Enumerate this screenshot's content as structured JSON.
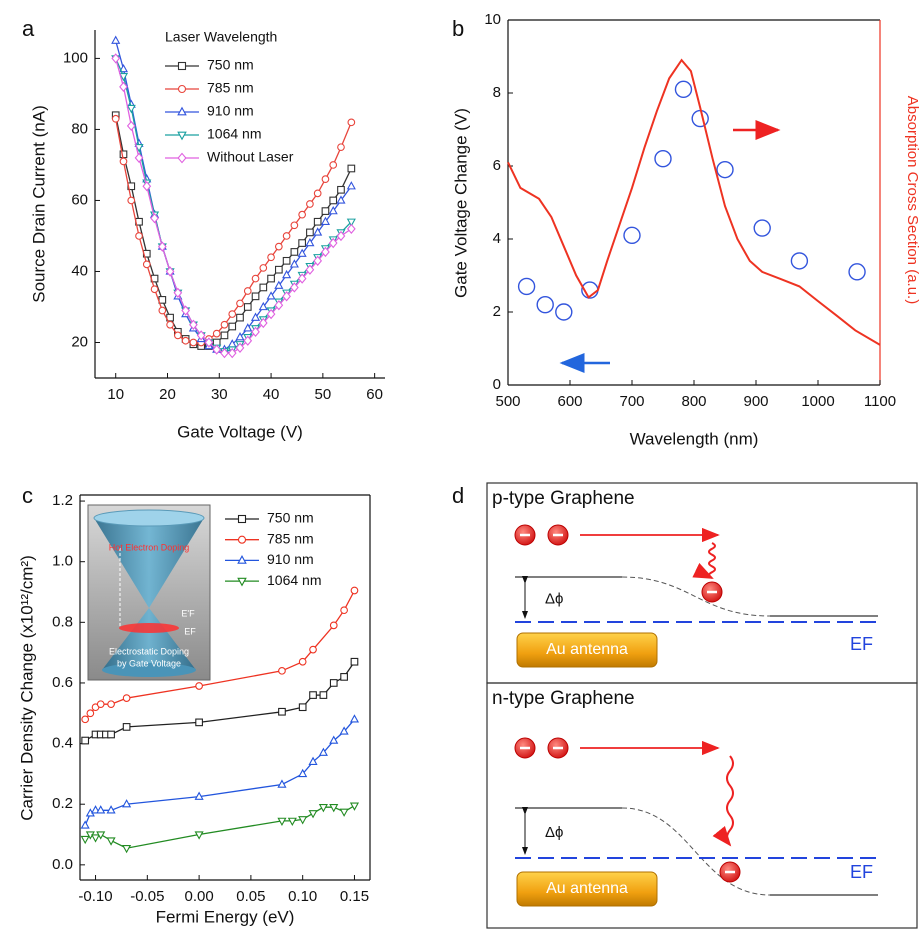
{
  "chart_data": [
    {
      "type": "line",
      "panel_label": "a",
      "x_label": "Gate Voltage (V)",
      "y_label": "Source Drain Current (nA)",
      "legend_title": "Laser Wavelength",
      "xlim": [
        6,
        62
      ],
      "ylim": [
        10,
        108
      ],
      "xticks": [
        10,
        20,
        30,
        40,
        50,
        60
      ],
      "yticks": [
        20,
        40,
        60,
        80,
        100
      ],
      "x": [
        10,
        11.5,
        13,
        14.5,
        16,
        17.5,
        19,
        20.5,
        22,
        23.5,
        25,
        26.5,
        28,
        29.5,
        31,
        32.5,
        34,
        35.5,
        37,
        38.5,
        40,
        41.5,
        43,
        44.5,
        46,
        47.5,
        49,
        50.5,
        52,
        53.5,
        55.5
      ],
      "series": [
        {
          "name": "750 nm",
          "color": "#333333",
          "marker": "square",
          "values": [
            84,
            73,
            64,
            54,
            45,
            38,
            32,
            27,
            23,
            21,
            19.5,
            19,
            19,
            20,
            22,
            24.5,
            27,
            30,
            33,
            35.5,
            38,
            40.5,
            43,
            45.5,
            48,
            51,
            54,
            57,
            60,
            63,
            69
          ]
        },
        {
          "name": "785 nm",
          "color": "#e8453c",
          "marker": "circle",
          "values": [
            83,
            71,
            60,
            50,
            42,
            35,
            29,
            25,
            22,
            20.5,
            20,
            20,
            21,
            22.5,
            25,
            28,
            31,
            34.5,
            38,
            41,
            44,
            47,
            50,
            53,
            56,
            59,
            62,
            66,
            70,
            75,
            82
          ]
        },
        {
          "name": "910 nm",
          "color": "#3355dd",
          "marker": "triangle-up",
          "values": [
            105,
            97,
            87,
            76,
            66,
            56,
            47,
            40,
            33,
            28,
            24,
            21,
            19,
            18,
            18,
            19.5,
            21.5,
            24,
            27,
            30,
            33,
            36,
            39,
            42,
            45,
            48,
            51,
            54,
            57,
            60,
            64
          ]
        },
        {
          "name": "1064 nm",
          "color": "#1aa0a0",
          "marker": "triangle-down",
          "values": [
            100,
            95,
            86,
            75,
            65,
            56,
            47,
            40,
            34,
            29,
            25,
            22,
            20,
            18.5,
            17.5,
            18,
            19.5,
            21.5,
            24,
            26.5,
            29,
            31.5,
            34,
            36.5,
            39,
            41.5,
            44,
            46.5,
            49,
            51,
            54
          ]
        },
        {
          "name": "Without Laser",
          "color": "#e060e0",
          "marker": "diamond",
          "values": [
            100,
            92,
            81,
            72,
            64,
            55,
            47,
            40,
            34,
            29,
            25,
            22,
            20,
            18,
            17,
            17,
            18.5,
            20.5,
            23,
            25.5,
            28,
            30.5,
            33,
            35.5,
            38,
            40.5,
            43,
            45.5,
            48,
            50,
            52
          ]
        }
      ]
    },
    {
      "type": "scatter",
      "panel_label": "b",
      "x_label": "Wavelength (nm)",
      "y_label": "Gate Voltage Change (V)",
      "y2_label": "Absorption Cross Section (a.u.)",
      "xlim": [
        500,
        1100
      ],
      "ylim": [
        0,
        10
      ],
      "y2lim": [
        0,
        10
      ],
      "xticks": [
        500,
        600,
        700,
        800,
        900,
        1000,
        1100
      ],
      "yticks": [
        0,
        2,
        4,
        6,
        8,
        10
      ],
      "series": [
        {
          "color": "#3355dd",
          "x": [
            530,
            560,
            590,
            632,
            700,
            750,
            783,
            810,
            850,
            910,
            970,
            1063
          ],
          "values": [
            2.7,
            2.2,
            2.0,
            2.6,
            4.1,
            6.2,
            8.1,
            7.3,
            5.9,
            4.3,
            3.4,
            3.1
          ]
        },
        {
          "type": "line",
          "axis": "y2",
          "color": "#ee3322",
          "x": [
            500,
            520,
            550,
            570,
            590,
            610,
            630,
            645,
            660,
            680,
            700,
            720,
            740,
            760,
            780,
            795,
            810,
            830,
            850,
            870,
            890,
            910,
            940,
            970,
            1000,
            1030,
            1060,
            1100
          ],
          "values": [
            6.1,
            5.4,
            5.1,
            4.6,
            3.8,
            3.0,
            2.4,
            2.6,
            3.4,
            4.4,
            5.4,
            6.5,
            7.5,
            8.4,
            8.9,
            8.6,
            7.6,
            6.2,
            4.9,
            4.0,
            3.4,
            3.1,
            2.9,
            2.7,
            2.3,
            1.9,
            1.5,
            1.1
          ]
        }
      ]
    },
    {
      "type": "line",
      "panel_label": "c",
      "x_label": "Fermi Energy (eV)",
      "y_label": "Carrier Density Change  (x10¹²/cm²)",
      "annotations": [
        "Hot Electron Doping",
        "E'F",
        "EF",
        "Electrostatic Doping",
        "by Gate Voltage"
      ],
      "xlim": [
        -0.115,
        0.165
      ],
      "ylim": [
        -0.05,
        1.22
      ],
      "xticks": [
        {
          "value": -0.1,
          "label": "-0.10"
        },
        -0.05,
        {
          "value": 0,
          "label": "0.00"
        },
        0.05,
        {
          "value": 0.1,
          "label": "0.10"
        },
        0.15
      ],
      "yticks": [
        {
          "value": 0,
          "label": "0.0"
        },
        0.2,
        0.4,
        0.6,
        0.8,
        {
          "value": 1,
          "label": "1.0"
        },
        1.2
      ],
      "series": [
        {
          "name": "750 nm",
          "color": "#222222",
          "marker": "square",
          "x": [
            -0.11,
            -0.1,
            -0.095,
            -0.09,
            -0.085,
            -0.07,
            0,
            0.08,
            0.1,
            0.11,
            0.12,
            0.13,
            0.14,
            0.15
          ],
          "values": [
            0.41,
            0.43,
            0.43,
            0.43,
            0.43,
            0.455,
            0.47,
            0.505,
            0.52,
            0.56,
            0.56,
            0.6,
            0.62,
            0.67
          ]
        },
        {
          "name": "785 nm",
          "color": "#ee3322",
          "marker": "circle",
          "x": [
            -0.11,
            -0.105,
            -0.1,
            -0.095,
            -0.085,
            -0.07,
            0,
            0.08,
            0.1,
            0.11,
            0.13,
            0.14,
            0.15
          ],
          "values": [
            0.48,
            0.5,
            0.52,
            0.53,
            0.53,
            0.55,
            0.59,
            0.64,
            0.67,
            0.71,
            0.79,
            0.84,
            0.905
          ]
        },
        {
          "name": "910 nm",
          "color": "#2255dd",
          "marker": "triangle-up",
          "x": [
            -0.11,
            -0.105,
            -0.1,
            -0.095,
            -0.085,
            -0.07,
            0,
            0.08,
            0.1,
            0.11,
            0.12,
            0.13,
            0.14,
            0.15
          ],
          "values": [
            0.13,
            0.17,
            0.18,
            0.18,
            0.18,
            0.2,
            0.225,
            0.265,
            0.3,
            0.34,
            0.37,
            0.41,
            0.44,
            0.48
          ]
        },
        {
          "name": "1064 nm",
          "color": "#228b22",
          "marker": "triangle-down",
          "x": [
            -0.11,
            -0.105,
            -0.1,
            -0.095,
            -0.085,
            -0.07,
            0,
            0.08,
            0.09,
            0.1,
            0.11,
            0.12,
            0.13,
            0.14,
            0.15
          ],
          "values": [
            0.085,
            0.1,
            0.09,
            0.1,
            0.08,
            0.055,
            0.1,
            0.145,
            0.145,
            0.15,
            0.17,
            0.19,
            0.19,
            0.175,
            0.195
          ]
        }
      ]
    }
  ],
  "diagram": {
    "panel_label": "d",
    "panels": [
      {
        "title": "p-type Graphene",
        "delta": "Δϕ",
        "antenna": "Au antenna",
        "fermi": "EF"
      },
      {
        "title": "n-type Graphene",
        "delta": "Δϕ",
        "antenna": "Au antenna",
        "fermi": "EF"
      }
    ]
  }
}
